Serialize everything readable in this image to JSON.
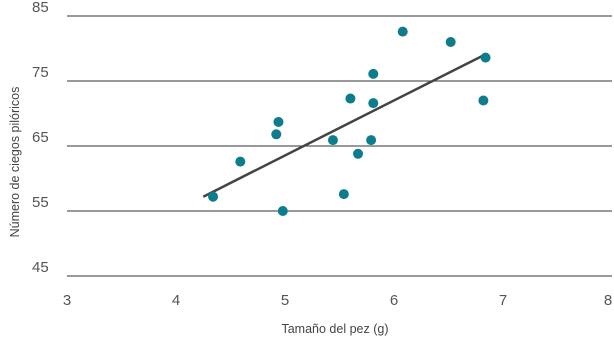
{
  "chart_data": {
    "type": "scatter",
    "title": "",
    "xlabel": "Tamaño del pez (g)",
    "ylabel": "Número de ciegos pilóricos",
    "xlim": [
      3,
      8
    ],
    "ylim": [
      45,
      85
    ],
    "xticks": [
      "3",
      "4",
      "5",
      "6",
      "7",
      "8"
    ],
    "yticks": [
      "45",
      "55",
      "65",
      "75",
      "85"
    ],
    "grid": "horizontal",
    "colors": {
      "points": "#0d7c8c",
      "trendline": "#444444",
      "grid": "#333333"
    },
    "series": [
      {
        "x": [
          4.34,
          4.59,
          4.92,
          4.94,
          4.98,
          5.44,
          5.54,
          5.6,
          5.67,
          5.79,
          5.81,
          5.81,
          6.08,
          6.52,
          6.82,
          6.84
        ],
        "y": [
          57.2,
          62.6,
          66.8,
          68.7,
          55.0,
          65.9,
          57.6,
          72.3,
          63.8,
          65.9,
          71.6,
          76.1,
          82.6,
          81.0,
          72.0,
          78.6
        ]
      }
    ],
    "trendline": {
      "x": [
        4.25,
        6.85
      ],
      "y": [
        57.2,
        79.2
      ]
    }
  }
}
